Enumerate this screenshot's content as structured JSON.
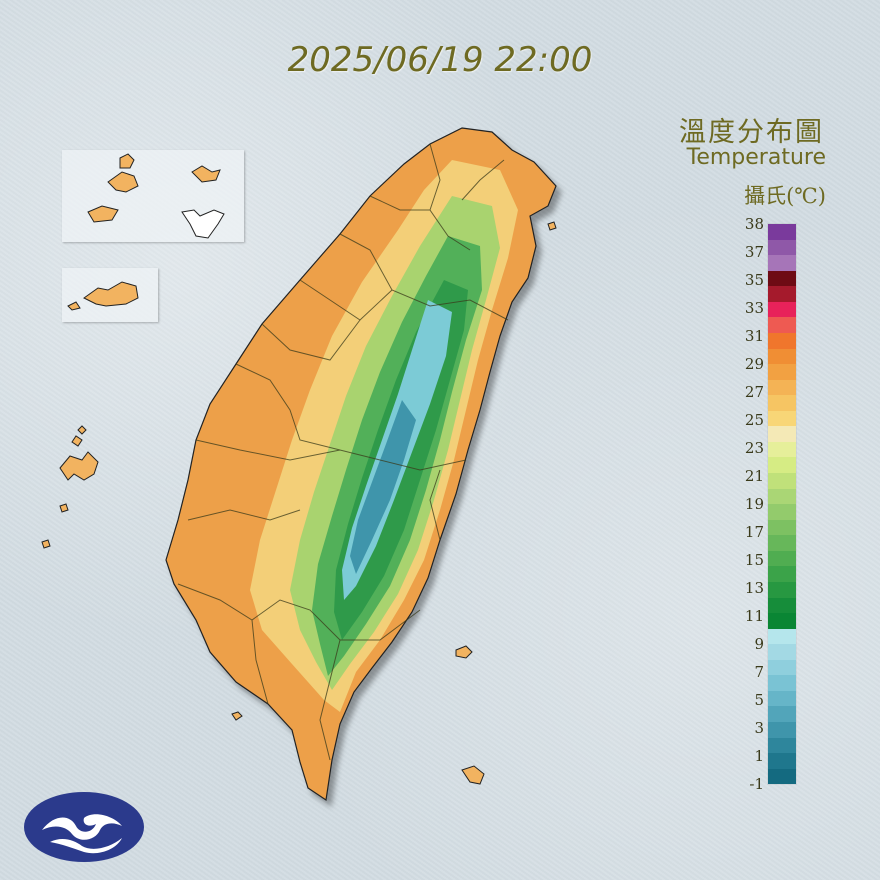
{
  "timestamp": "2025/06/19 22:00",
  "title_zh": "溫度分布圖",
  "title_en": "Temperature",
  "unit": "攝氏(℃)",
  "legend": {
    "labels": [
      "38",
      "37",
      "35",
      "33",
      "31",
      "29",
      "27",
      "25",
      "23",
      "21",
      "19",
      "17",
      "15",
      "13",
      "11",
      "9",
      "7",
      "5",
      "3",
      "1",
      "-1"
    ],
    "colors": [
      "#7a3a9c",
      "#8f58a8",
      "#a675b8",
      "#6e0b14",
      "#a51a2c",
      "#e8225a",
      "#ee5a52",
      "#f0762c",
      "#f08e34",
      "#f2a142",
      "#f4b355",
      "#f6c563",
      "#f8d677",
      "#f4e9b6",
      "#e6ef9a",
      "#d6ec84",
      "#c0e17a",
      "#aad675",
      "#93cb6c",
      "#7dc162",
      "#67b75a",
      "#50ad51",
      "#3ba349",
      "#279841",
      "#168d3a",
      "#0a8634",
      "#b5e6ec",
      "#a3d9e4",
      "#8fcfdd",
      "#7ac3d4",
      "#66b5c8",
      "#52a5ba",
      "#3f95ab",
      "#2e869c",
      "#1f778d",
      "#146a80"
    ]
  },
  "map_colors": {
    "lowland": "#eda04a",
    "coastal": "#f2b360",
    "foothill": "#f3cf78",
    "hill": "#a9d36f",
    "mid": "#52b059",
    "high": "#2f9a4a",
    "peak": "#7ccbd6",
    "summit": "#3f95ab"
  },
  "logo_color": "#2b3a8c"
}
